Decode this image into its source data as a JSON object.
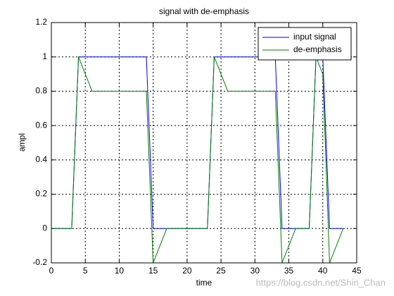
{
  "chart_data": {
    "type": "line",
    "title": "signal with de-emphasis",
    "xlabel": "time",
    "ylabel": "ampl",
    "x": [
      0,
      1,
      2,
      3,
      4,
      5,
      6,
      7,
      8,
      9,
      10,
      11,
      12,
      13,
      14,
      15,
      16,
      17,
      18,
      19,
      20,
      21,
      22,
      23,
      24,
      25,
      26,
      27,
      28,
      29,
      30,
      31,
      32,
      33,
      34,
      35,
      36,
      37,
      38,
      39,
      40,
      41,
      42,
      43
    ],
    "series": [
      {
        "name": "input signal",
        "color": "#0000ff",
        "values": [
          0,
          0,
          0,
          0,
          1,
          1,
          1,
          1,
          1,
          1,
          1,
          1,
          1,
          1,
          1,
          0,
          0,
          0,
          0,
          0,
          0,
          0,
          0,
          0,
          1,
          1,
          1,
          1,
          1,
          1,
          1,
          1,
          1,
          1,
          0,
          0,
          0,
          0,
          0,
          1,
          1,
          0,
          0,
          0
        ]
      },
      {
        "name": "de-emphasis",
        "color": "#008000",
        "values": [
          0,
          0,
          0,
          0,
          1,
          0.9,
          0.8,
          0.8,
          0.8,
          0.8,
          0.8,
          0.8,
          0.8,
          0.8,
          0.8,
          -0.2,
          -0.1,
          0,
          0,
          0,
          0,
          0,
          0,
          0,
          1,
          0.9,
          0.8,
          0.8,
          0.8,
          0.8,
          0.8,
          0.8,
          0.8,
          0.8,
          -0.2,
          -0.1,
          0,
          0,
          0,
          1,
          0.9,
          -0.2,
          -0.1,
          0
        ]
      }
    ],
    "xlim": [
      0,
      45
    ],
    "xticks": [
      0,
      5,
      10,
      15,
      20,
      25,
      30,
      35,
      40,
      45
    ],
    "ylim": [
      -0.2,
      1.2
    ],
    "yticks": [
      -0.2,
      0,
      0.2,
      0.4,
      0.6,
      0.8,
      1,
      1.2
    ],
    "grid": true,
    "legend": "top-right",
    "watermark": "https://blog.csdn.net/Shin_Chan"
  }
}
